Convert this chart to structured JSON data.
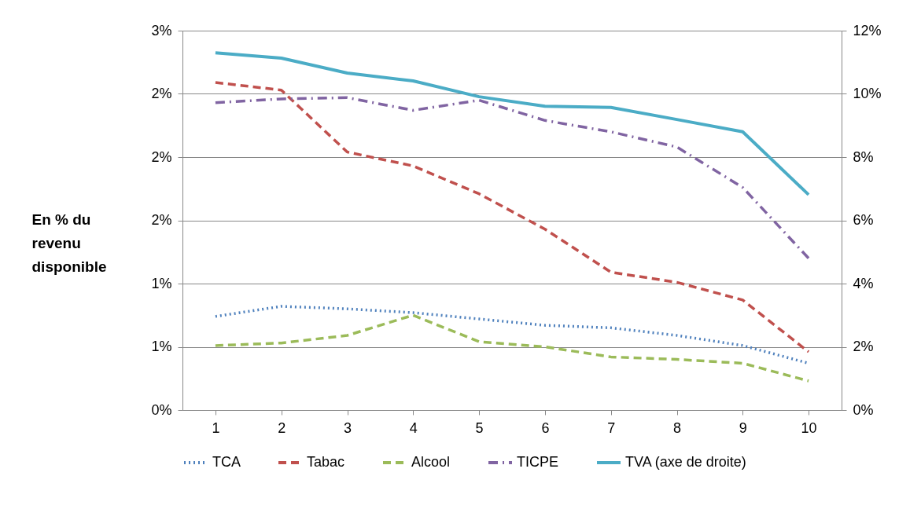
{
  "chart_data": {
    "type": "line",
    "ylabel": "En % du revenu disponible",
    "categories": [
      "1",
      "2",
      "3",
      "4",
      "5",
      "6",
      "7",
      "8",
      "9",
      "10"
    ],
    "series": [
      {
        "name": "TCA",
        "color": "#4f81bd",
        "line_style": "dotted",
        "values": [
          0.74,
          0.82,
          0.8,
          0.77,
          0.72,
          0.67,
          0.65,
          0.59,
          0.51,
          0.37
        ]
      },
      {
        "name": "Tabac",
        "color": "#c0504d",
        "line_style": "dashed",
        "values": [
          2.59,
          2.53,
          2.04,
          1.93,
          1.71,
          1.43,
          1.09,
          1.01,
          0.87,
          0.46
        ]
      },
      {
        "name": "Alcool",
        "color": "#9bbb59",
        "line_style": "dashed",
        "values": [
          0.51,
          0.53,
          0.59,
          0.75,
          0.54,
          0.5,
          0.42,
          0.4,
          0.37,
          0.23
        ]
      },
      {
        "name": "TICPE",
        "color": "#8064a2",
        "line_style": "dashdot",
        "values": [
          2.43,
          2.46,
          2.47,
          2.37,
          2.45,
          2.29,
          2.2,
          2.08,
          1.76,
          1.2
        ]
      },
      {
        "name": "TVA (axe de droite)",
        "color": "#4bacc6",
        "line_style": "solid",
        "axis": "y2",
        "values": [
          11.3,
          11.13,
          10.66,
          10.41,
          9.91,
          9.61,
          9.57,
          9.19,
          8.8,
          6.81
        ]
      }
    ],
    "ylim": [
      0,
      3
    ],
    "yticks": [
      {
        "value": 0,
        "label": "0%"
      },
      {
        "value": 0.5,
        "label": "1%"
      },
      {
        "value": 1,
        "label": "1%"
      },
      {
        "value": 1.5,
        "label": "2%"
      },
      {
        "value": 2,
        "label": "2%"
      },
      {
        "value": 2.5,
        "label": "2%"
      },
      {
        "value": 3,
        "label": "3%"
      }
    ],
    "y2lim": [
      0,
      12
    ],
    "y2ticks": [
      {
        "value": 0,
        "label": "0%"
      },
      {
        "value": 2,
        "label": "2%"
      },
      {
        "value": 4,
        "label": "4%"
      },
      {
        "value": 6,
        "label": "6%"
      },
      {
        "value": 8,
        "label": "8%"
      },
      {
        "value": 10,
        "label": "10%"
      },
      {
        "value": 12,
        "label": "12%"
      }
    ],
    "grid": "y",
    "legend": "bottom",
    "marker": "none"
  }
}
